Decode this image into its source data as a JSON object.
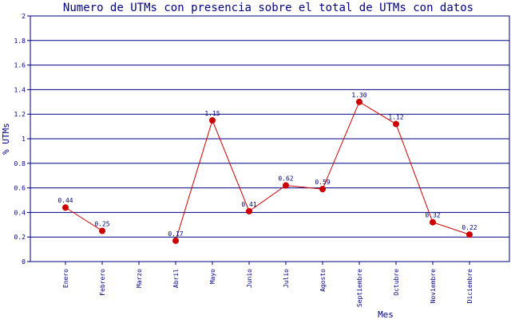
{
  "chart_data": {
    "type": "line",
    "title": "Numero de UTMs con presencia sobre el total de UTMs con datos",
    "xlabel": "Mes",
    "ylabel": "% UTMs",
    "ylim": [
      0,
      2
    ],
    "yticks": [
      "0",
      "0.2",
      "0.4",
      "0.6",
      "0.8",
      "1",
      "1.2",
      "1.4",
      "1.6",
      "1.8",
      "2"
    ],
    "categories": [
      "Enero",
      "Febrero",
      "Marzo",
      "Abril",
      "Mayo",
      "Junio",
      "Julio",
      "Agosto",
      "Septiembre",
      "Octubre",
      "Noviembre",
      "Diciembre"
    ],
    "values": [
      0.44,
      0.25,
      null,
      0.17,
      1.15,
      0.41,
      0.62,
      0.59,
      1.3,
      1.12,
      0.32,
      0.22
    ],
    "data_labels": [
      "0.44",
      "0.25",
      "",
      "0.17",
      "1.15",
      "0.41",
      "0.62",
      "0.59",
      "1.30",
      "1.12",
      "0.32",
      "0.22"
    ],
    "grid": "horizontal",
    "colors": {
      "line": "#cc0000",
      "marker": "#cc0000",
      "text": "#000080",
      "grid": "#000080",
      "background": "#ffffff"
    }
  }
}
